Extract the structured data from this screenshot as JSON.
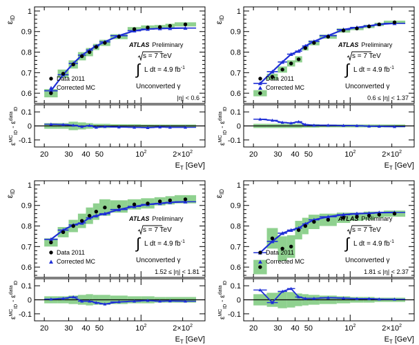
{
  "colors": {
    "band": "#8fd18f",
    "mc_line": "#1f2fd6",
    "data_marker": "#000000",
    "axis": "#000000"
  },
  "common": {
    "ylabel_top": "ε",
    "ylabel_top_sub": "ID",
    "ylabel_bottom": "ε",
    "ylabel_bottom_sup1": "MC",
    "ylabel_bottom_sub1": "ID",
    "ylabel_bottom_mid": " - ε",
    "ylabel_bottom_sup2": "data",
    "ylabel_bottom_sub2": "ID",
    "xlabel_main": "E",
    "xlabel_sub": "T",
    "xlabel_tail": " [GeV]",
    "atlas": "ATLAS",
    "preliminary": "Preliminary",
    "sqrt_s": "s = 7 TeV",
    "lumi": "L dt = 4.9 fb",
    "lumi_sup": "-1",
    "photon_type": "Unconverted γ",
    "legend_data": "Data 2011",
    "legend_mc": "Corrected MC",
    "top_yticks": [
      "0.6",
      "0.7",
      "0.8",
      "0.9",
      "1"
    ],
    "bottom_yticks": [
      "-0.1",
      "0",
      "0.1"
    ],
    "xtick_labels": [
      "20",
      "30",
      "40",
      "50",
      "10",
      "2",
      "2×10",
      "2"
    ]
  },
  "chart_data": [
    {
      "type": "scatter",
      "title": "",
      "eta_label": "|η| < 0.6",
      "xlabel": "E_T [GeV]",
      "ylabel": "ε_ID",
      "xscale": "log",
      "xlim": [
        17,
        290
      ],
      "ylim": [
        0.55,
        1.02
      ],
      "bin_edges": [
        20,
        25,
        30,
        35,
        40,
        45,
        50,
        60,
        80,
        100,
        125,
        150,
        175,
        250
      ],
      "data": [
        0.6,
        0.695,
        0.74,
        0.78,
        0.8,
        0.825,
        0.845,
        0.875,
        0.912,
        0.92,
        0.922,
        0.928,
        0.935
      ],
      "band_halfwidth": [
        0.02,
        0.02,
        0.02,
        0.02,
        0.02,
        0.015,
        0.015,
        0.012,
        0.01,
        0.01,
        0.01,
        0.01,
        0.01
      ],
      "mc": [
        0.612,
        0.69,
        0.745,
        0.785,
        0.81,
        0.83,
        0.85,
        0.88,
        0.904,
        0.912,
        0.915,
        0.916,
        0.917
      ],
      "ratio_ylim": [
        -0.15,
        0.15
      ],
      "diff": [
        0.012,
        0.01,
        0.005,
        -0.005,
        0.003,
        -0.01,
        -0.005,
        -0.008,
        -0.01,
        -0.012,
        -0.008,
        -0.01,
        -0.01
      ],
      "diff_band": [
        0.02,
        0.02,
        0.03,
        0.025,
        0.02,
        0.015,
        0.015,
        0.012,
        0.012,
        0.01,
        0.01,
        0.01,
        0.01
      ]
    },
    {
      "type": "scatter",
      "title": "",
      "eta_label": "0.6 ≤ |η| < 1.37",
      "xlabel": "E_T [GeV]",
      "ylabel": "ε_ID",
      "xscale": "log",
      "xlim": [
        17,
        290
      ],
      "ylim": [
        0.55,
        1.02
      ],
      "bin_edges": [
        20,
        25,
        30,
        35,
        40,
        45,
        50,
        60,
        80,
        100,
        125,
        150,
        175,
        250
      ],
      "data": [
        0.6,
        0.68,
        0.715,
        0.745,
        0.765,
        0.82,
        0.845,
        0.875,
        0.905,
        0.915,
        0.925,
        0.935,
        0.945
      ],
      "band_halfwidth": [
        0.015,
        0.015,
        0.015,
        0.015,
        0.015,
        0.012,
        0.012,
        0.01,
        0.01,
        0.008,
        0.008,
        0.008,
        0.008
      ],
      "mc": [
        0.648,
        0.705,
        0.752,
        0.79,
        0.805,
        0.83,
        0.852,
        0.88,
        0.91,
        0.92,
        0.928,
        0.935,
        0.94
      ],
      "ratio_ylim": [
        -0.15,
        0.15
      ],
      "diff": [
        0.048,
        0.04,
        0.025,
        0.02,
        0.03,
        0.01,
        0.005,
        0.005,
        0.003,
        0.002,
        -0.002,
        -0.003,
        -0.005
      ],
      "diff_band": [
        0.015,
        0.015,
        0.015,
        0.015,
        0.015,
        0.012,
        0.012,
        0.01,
        0.01,
        0.01,
        0.01,
        0.01,
        0.01
      ]
    },
    {
      "type": "scatter",
      "title": "",
      "eta_label": "1.52 ≤ |η| < 1.81",
      "xlabel": "E_T [GeV]",
      "ylabel": "ε_ID",
      "xscale": "log",
      "xlim": [
        17,
        290
      ],
      "ylim": [
        0.55,
        1.02
      ],
      "bin_edges": [
        20,
        25,
        30,
        35,
        40,
        45,
        50,
        60,
        80,
        100,
        125,
        150,
        175,
        250
      ],
      "data": [
        0.72,
        0.77,
        0.8,
        0.825,
        0.85,
        0.87,
        0.89,
        0.895,
        0.905,
        0.91,
        0.92,
        0.925,
        0.93
      ],
      "band_halfwidth": [
        0.02,
        0.025,
        0.03,
        0.035,
        0.04,
        0.04,
        0.04,
        0.03,
        0.025,
        0.025,
        0.02,
        0.02,
        0.02
      ],
      "mc": [
        0.735,
        0.78,
        0.805,
        0.815,
        0.84,
        0.85,
        0.86,
        0.88,
        0.895,
        0.905,
        0.91,
        0.915,
        0.918
      ],
      "ratio_ylim": [
        -0.15,
        0.15
      ],
      "diff": [
        0.005,
        0.01,
        0.02,
        -0.01,
        -0.01,
        -0.02,
        -0.03,
        -0.015,
        -0.01,
        -0.005,
        -0.01,
        -0.008,
        -0.01
      ],
      "diff_band": [
        0.025,
        0.025,
        0.03,
        0.035,
        0.04,
        0.035,
        0.035,
        0.03,
        0.025,
        0.025,
        0.02,
        0.02,
        0.02
      ]
    },
    {
      "type": "scatter",
      "title": "",
      "eta_label": "1.81 ≤ |η| < 2.37",
      "xlabel": "E_T [GeV]",
      "ylabel": "ε_ID",
      "xscale": "log",
      "xlim": [
        17,
        290
      ],
      "ylim": [
        0.55,
        1.02
      ],
      "bin_edges": [
        20,
        25,
        30,
        35,
        40,
        45,
        50,
        60,
        80,
        100,
        125,
        150,
        175,
        250
      ],
      "data": [
        0.6,
        0.74,
        0.69,
        0.7,
        0.78,
        0.8,
        0.82,
        0.83,
        0.84,
        0.845,
        0.85,
        0.855,
        0.86
      ],
      "band_halfwidth": [
        0.035,
        0.05,
        0.06,
        0.055,
        0.045,
        0.04,
        0.035,
        0.03,
        0.025,
        0.02,
        0.02,
        0.015,
        0.015
      ],
      "mc": [
        0.67,
        0.725,
        0.765,
        0.78,
        0.79,
        0.81,
        0.83,
        0.845,
        0.855,
        0.86,
        0.862,
        0.865,
        0.866
      ],
      "ratio_ylim": [
        -0.15,
        0.15
      ],
      "diff": [
        0.07,
        -0.02,
        0.06,
        0.08,
        0.02,
        0.01,
        0.01,
        0.015,
        0.012,
        0.008,
        0.008,
        0.005,
        0.004
      ],
      "diff_band": [
        0.04,
        0.05,
        0.06,
        0.055,
        0.045,
        0.04,
        0.035,
        0.03,
        0.025,
        0.02,
        0.02,
        0.015,
        0.015
      ]
    }
  ]
}
